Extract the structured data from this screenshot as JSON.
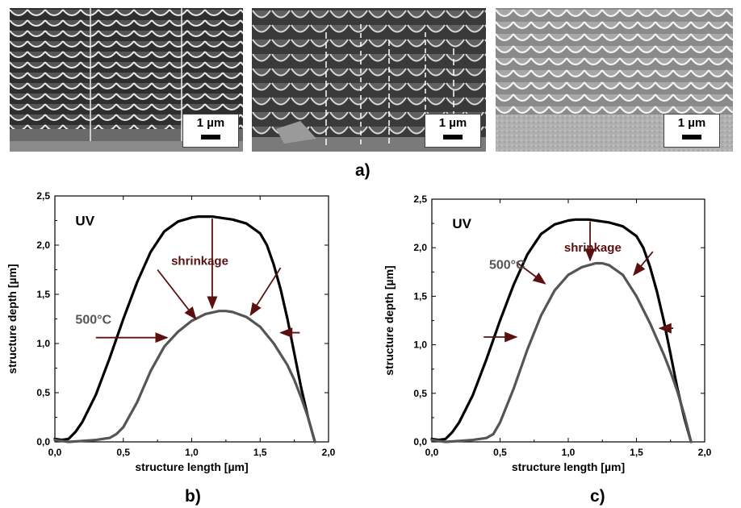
{
  "panel_labels": {
    "a": "a)",
    "b": "b)",
    "c": "c)"
  },
  "sem_images": [
    {
      "scale_text": "1 µm"
    },
    {
      "scale_text": "1 µm"
    },
    {
      "scale_text": "1 µm"
    }
  ],
  "chart_data": [
    {
      "type": "line",
      "xlabel": "structure length [µm]",
      "ylabel": "structure depth [µm]",
      "xlim": [
        0,
        2.0
      ],
      "ylim": [
        0,
        2.5
      ],
      "xticks": [
        0.0,
        0.5,
        1.0,
        1.5,
        2.0
      ],
      "yticks": [
        0.0,
        0.5,
        1.0,
        1.5,
        2.0,
        2.5
      ],
      "xtick_labels": [
        "0,0",
        "0,5",
        "1,0",
        "1,5",
        "2,0"
      ],
      "ytick_labels": [
        "0,0",
        "0,5",
        "1,0",
        "1,5",
        "2,0",
        "2,5"
      ],
      "series": [
        {
          "name": "UV",
          "color": "#000000",
          "x": [
            0.0,
            0.05,
            0.1,
            0.15,
            0.2,
            0.3,
            0.4,
            0.5,
            0.6,
            0.7,
            0.8,
            0.9,
            1.0,
            1.05,
            1.1,
            1.15,
            1.2,
            1.3,
            1.4,
            1.5,
            1.55,
            1.6,
            1.65,
            1.7,
            1.75,
            1.8,
            1.85,
            1.9
          ],
          "y": [
            0.03,
            0.02,
            0.03,
            0.1,
            0.2,
            0.48,
            0.85,
            1.25,
            1.62,
            1.93,
            2.14,
            2.24,
            2.28,
            2.29,
            2.29,
            2.29,
            2.28,
            2.26,
            2.22,
            2.12,
            2.0,
            1.8,
            1.55,
            1.25,
            0.9,
            0.55,
            0.25,
            0.0
          ]
        },
        {
          "name": "500°C",
          "color": "#555555",
          "x": [
            0.0,
            0.1,
            0.2,
            0.3,
            0.4,
            0.45,
            0.5,
            0.6,
            0.7,
            0.8,
            0.9,
            1.0,
            1.1,
            1.2,
            1.25,
            1.3,
            1.4,
            1.5,
            1.6,
            1.7,
            1.75,
            1.8,
            1.85,
            1.9
          ],
          "y": [
            0.02,
            0.0,
            0.01,
            0.02,
            0.04,
            0.08,
            0.15,
            0.4,
            0.72,
            0.97,
            1.12,
            1.23,
            1.3,
            1.33,
            1.33,
            1.32,
            1.27,
            1.17,
            1.0,
            0.78,
            0.63,
            0.45,
            0.25,
            0.0
          ]
        }
      ],
      "annotations": [
        {
          "text": "UV",
          "x": 0.15,
          "y": 2.2,
          "color": "#000000",
          "size": 17
        },
        {
          "text": "shrinkage",
          "x": 0.85,
          "y": 1.8,
          "color": "#5a0f0f",
          "size": 15
        },
        {
          "text": "500°C",
          "x": 0.15,
          "y": 1.2,
          "color": "#555555",
          "size": 16
        }
      ],
      "arrows": [
        {
          "from": [
            1.15,
            2.27
          ],
          "to": [
            1.15,
            1.36
          ]
        },
        {
          "from": [
            0.75,
            1.75
          ],
          "to": [
            1.03,
            1.25
          ]
        },
        {
          "from": [
            1.65,
            1.77
          ],
          "to": [
            1.43,
            1.29
          ]
        },
        {
          "from": [
            0.3,
            1.06
          ],
          "to": [
            0.82,
            1.06
          ]
        },
        {
          "from": [
            1.79,
            1.11
          ],
          "to": [
            1.65,
            1.11
          ]
        }
      ],
      "arrow_color": "#5a1010"
    },
    {
      "type": "line",
      "xlabel": "structure length [µm]",
      "ylabel": "structure depth [µm]",
      "xlim": [
        0,
        2.0
      ],
      "ylim": [
        0,
        2.5
      ],
      "xticks": [
        0.0,
        0.5,
        1.0,
        1.5,
        2.0
      ],
      "yticks": [
        0.0,
        0.5,
        1.0,
        1.5,
        2.0,
        2.5
      ],
      "xtick_labels": [
        "0,0",
        "0,5",
        "1,0",
        "1,5",
        "2,0"
      ],
      "ytick_labels": [
        "0,0",
        "0,5",
        "1,0",
        "1,5",
        "2,0",
        "2,5"
      ],
      "series": [
        {
          "name": "UV",
          "color": "#000000",
          "x": [
            0.0,
            0.05,
            0.1,
            0.15,
            0.2,
            0.3,
            0.4,
            0.5,
            0.6,
            0.7,
            0.8,
            0.9,
            1.0,
            1.05,
            1.1,
            1.15,
            1.2,
            1.3,
            1.4,
            1.5,
            1.55,
            1.6,
            1.65,
            1.7,
            1.75,
            1.8,
            1.85,
            1.9
          ],
          "y": [
            0.03,
            0.02,
            0.03,
            0.1,
            0.2,
            0.48,
            0.85,
            1.25,
            1.62,
            1.93,
            2.14,
            2.24,
            2.28,
            2.29,
            2.29,
            2.29,
            2.28,
            2.26,
            2.22,
            2.12,
            2.0,
            1.8,
            1.55,
            1.25,
            0.9,
            0.55,
            0.25,
            0.0
          ]
        },
        {
          "name": "500°C",
          "color": "#555555",
          "x": [
            0.0,
            0.1,
            0.2,
            0.3,
            0.4,
            0.45,
            0.5,
            0.6,
            0.7,
            0.8,
            0.9,
            1.0,
            1.1,
            1.2,
            1.25,
            1.3,
            1.4,
            1.5,
            1.6,
            1.7,
            1.75,
            1.8,
            1.85,
            1.9
          ],
          "y": [
            0.02,
            0.0,
            0.01,
            0.02,
            0.04,
            0.08,
            0.2,
            0.55,
            0.95,
            1.3,
            1.56,
            1.72,
            1.8,
            1.84,
            1.84,
            1.82,
            1.72,
            1.5,
            1.22,
            0.9,
            0.72,
            0.52,
            0.28,
            0.0
          ]
        }
      ],
      "annotations": [
        {
          "text": "UV",
          "x": 0.15,
          "y": 2.2,
          "color": "#000000",
          "size": 17
        },
        {
          "text": "shrinkage",
          "x": 0.97,
          "y": 1.96,
          "color": "#5a0f0f",
          "size": 15
        },
        {
          "text": "500°C",
          "x": 0.42,
          "y": 1.78,
          "color": "#555555",
          "size": 16
        }
      ],
      "arrows": [
        {
          "from": [
            1.16,
            2.27
          ],
          "to": [
            1.16,
            1.87
          ]
        },
        {
          "from": [
            0.62,
            1.85
          ],
          "to": [
            0.83,
            1.63
          ]
        },
        {
          "from": [
            1.62,
            1.96
          ],
          "to": [
            1.48,
            1.72
          ]
        },
        {
          "from": [
            0.38,
            1.08
          ],
          "to": [
            0.62,
            1.08
          ]
        },
        {
          "from": [
            1.77,
            1.17
          ],
          "to": [
            1.67,
            1.17
          ]
        }
      ],
      "arrow_color": "#5a1010"
    }
  ]
}
